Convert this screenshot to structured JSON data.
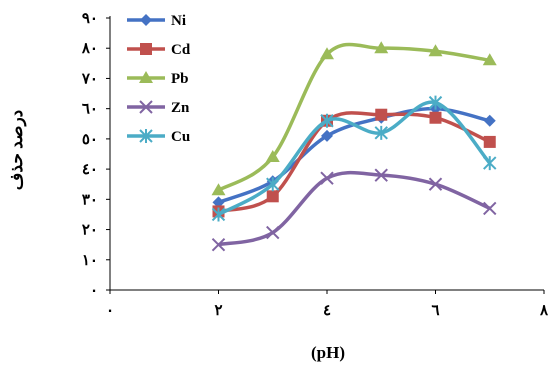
{
  "chart_data": {
    "type": "line",
    "title": "",
    "xlabel": "(pH)",
    "ylabel": "درصد حذف",
    "xlim": [
      0,
      8
    ],
    "ylim": [
      0,
      90
    ],
    "x_ticks": [
      0,
      2,
      4,
      6,
      8
    ],
    "x_tick_labels": [
      "٠",
      "٢",
      "٤",
      "٦",
      "٨"
    ],
    "y_ticks": [
      0,
      10,
      20,
      30,
      40,
      50,
      60,
      70,
      80,
      90
    ],
    "y_tick_labels": [
      "٠",
      "١٠",
      "٢٠",
      "٣٠",
      "٤٠",
      "٥٠",
      "٦٠",
      "٧٠",
      "٨٠",
      "٩٠"
    ],
    "grid": false,
    "legend_position": "top-left",
    "x": [
      2,
      3,
      4,
      5,
      6,
      7
    ],
    "series": [
      {
        "name": "Ni",
        "color": "#4472C4",
        "marker": "diamond",
        "values": [
          29,
          36,
          51,
          57,
          60,
          56
        ]
      },
      {
        "name": "Cd",
        "color": "#C0504D",
        "marker": "square",
        "values": [
          26,
          31,
          56,
          58,
          57,
          49
        ]
      },
      {
        "name": "Pb",
        "color": "#9BBB59",
        "marker": "triangle",
        "values": [
          33,
          44,
          78,
          80,
          79,
          76
        ]
      },
      {
        "name": "Zn",
        "color": "#8064A2",
        "marker": "x",
        "values": [
          15,
          19,
          37,
          38,
          35,
          27
        ]
      },
      {
        "name": "Cu",
        "color": "#4BACC6",
        "marker": "star",
        "values": [
          25,
          35,
          56,
          52,
          62,
          42
        ]
      }
    ]
  }
}
